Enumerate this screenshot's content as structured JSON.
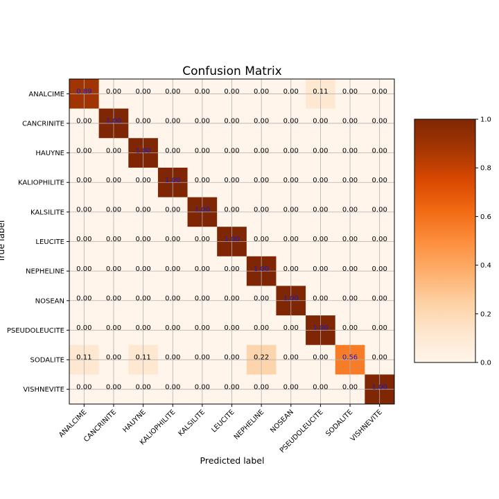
{
  "chart_data": {
    "type": "heatmap",
    "title": "Confusion Matrix",
    "xlabel": "Predicted label",
    "ylabel": "True label",
    "labels": [
      "ANALCIME",
      "CANCRINITE",
      "HAUYNE",
      "KALIOPHILITE",
      "KALSILITE",
      "LEUCITE",
      "NEPHELINE",
      "NOSEAN",
      "PSEUDOLEUCITE",
      "SODALITE",
      "VISHNEVITE"
    ],
    "matrix": [
      [
        0.89,
        0.0,
        0.0,
        0.0,
        0.0,
        0.0,
        0.0,
        0.0,
        0.11,
        0.0,
        0.0
      ],
      [
        0.0,
        1.0,
        0.0,
        0.0,
        0.0,
        0.0,
        0.0,
        0.0,
        0.0,
        0.0,
        0.0
      ],
      [
        0.0,
        0.0,
        1.0,
        0.0,
        0.0,
        0.0,
        0.0,
        0.0,
        0.0,
        0.0,
        0.0
      ],
      [
        0.0,
        0.0,
        0.0,
        1.0,
        0.0,
        0.0,
        0.0,
        0.0,
        0.0,
        0.0,
        0.0
      ],
      [
        0.0,
        0.0,
        0.0,
        0.0,
        1.0,
        0.0,
        0.0,
        0.0,
        0.0,
        0.0,
        0.0
      ],
      [
        0.0,
        0.0,
        0.0,
        0.0,
        0.0,
        1.0,
        0.0,
        0.0,
        0.0,
        0.0,
        0.0
      ],
      [
        0.0,
        0.0,
        0.0,
        0.0,
        0.0,
        0.0,
        1.0,
        0.0,
        0.0,
        0.0,
        0.0
      ],
      [
        0.0,
        0.0,
        0.0,
        0.0,
        0.0,
        0.0,
        0.0,
        1.0,
        0.0,
        0.0,
        0.0
      ],
      [
        0.0,
        0.0,
        0.0,
        0.0,
        0.0,
        0.0,
        0.0,
        0.0,
        1.0,
        0.0,
        0.0
      ],
      [
        0.11,
        0.0,
        0.11,
        0.0,
        0.0,
        0.0,
        0.22,
        0.0,
        0.0,
        0.56,
        0.0
      ],
      [
        0.0,
        0.0,
        0.0,
        0.0,
        0.0,
        0.0,
        0.0,
        0.0,
        0.0,
        0.0,
        1.0
      ]
    ],
    "colorbar": {
      "range": [
        0,
        1
      ],
      "ticks": [
        "0.0",
        "0.2",
        "0.4",
        "0.6",
        "0.8",
        "1.0"
      ],
      "colormap": "Oranges"
    },
    "colors": {
      "low": "#fff5eb",
      "high": "#7f2704",
      "diagonal_text": "#1a1acd",
      "offdiagonal_text": "#000000",
      "grid": "#b0b0b0"
    },
    "grid": true
  }
}
